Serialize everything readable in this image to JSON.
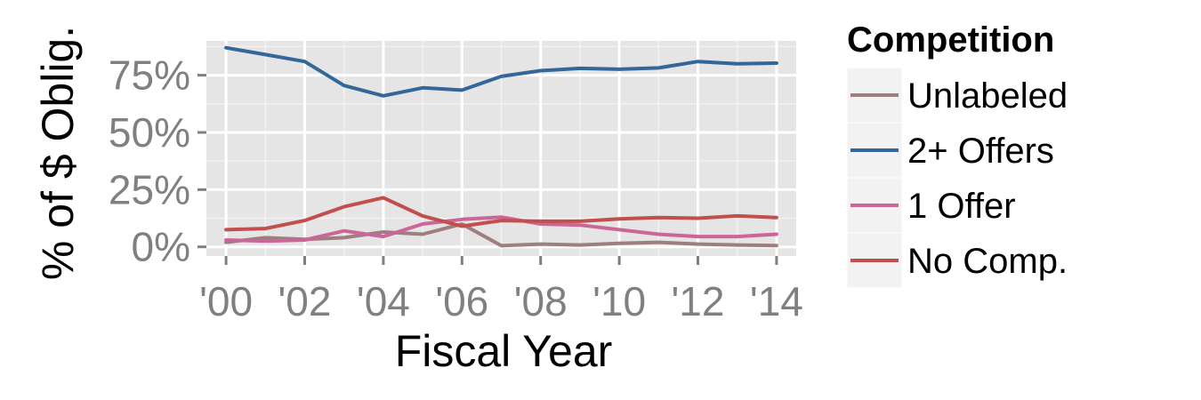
{
  "chart_data": {
    "type": "line",
    "title": "",
    "xlabel": "Fiscal Year",
    "ylabel": "% of $ Oblig.",
    "x": [
      2000,
      2001,
      2002,
      2003,
      2004,
      2005,
      2006,
      2007,
      2008,
      2009,
      2010,
      2011,
      2012,
      2013,
      2014
    ],
    "xlim": [
      1999.5,
      2014.5
    ],
    "ylim": [
      -0.04,
      0.9
    ],
    "x_ticks": [
      {
        "value": 2000,
        "label": "'00"
      },
      {
        "value": 2002,
        "label": "'02"
      },
      {
        "value": 2004,
        "label": "'04"
      },
      {
        "value": 2006,
        "label": "'06"
      },
      {
        "value": 2008,
        "label": "'08"
      },
      {
        "value": 2010,
        "label": "'10"
      },
      {
        "value": 2012,
        "label": "'12"
      },
      {
        "value": 2014,
        "label": "'14"
      }
    ],
    "y_ticks": [
      {
        "value": 0,
        "label": "0%"
      },
      {
        "value": 0.25,
        "label": "25%"
      },
      {
        "value": 0.5,
        "label": "50%"
      },
      {
        "value": 0.75,
        "label": "75%"
      }
    ],
    "grid": true,
    "legend_title": "Competition",
    "legend_position": "right",
    "series": [
      {
        "name": "Unlabeled",
        "color": "#9e7e7e",
        "values": [
          0.02,
          0.04,
          0.033,
          0.04,
          0.065,
          0.055,
          0.1,
          0.005,
          0.012,
          0.008,
          0.015,
          0.02,
          0.012,
          0.008,
          0.006
        ]
      },
      {
        "name": "2+ Offers",
        "color": "#336699",
        "values": [
          0.87,
          0.84,
          0.81,
          0.705,
          0.66,
          0.695,
          0.685,
          0.745,
          0.77,
          0.78,
          0.776,
          0.782,
          0.81,
          0.8,
          0.803
        ]
      },
      {
        "name": "1 Offer",
        "color": "#cc6699",
        "values": [
          0.03,
          0.025,
          0.03,
          0.07,
          0.045,
          0.1,
          0.12,
          0.13,
          0.1,
          0.095,
          0.075,
          0.055,
          0.045,
          0.045,
          0.055
        ]
      },
      {
        "name": "No Comp.",
        "color": "#c24e4e",
        "values": [
          0.075,
          0.08,
          0.115,
          0.175,
          0.215,
          0.135,
          0.09,
          0.115,
          0.112,
          0.112,
          0.122,
          0.128,
          0.125,
          0.135,
          0.128
        ]
      }
    ]
  }
}
